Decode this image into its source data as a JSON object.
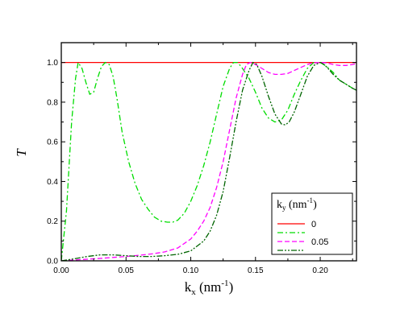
{
  "chart_data": {
    "type": "line",
    "xlim": [
      0.0,
      0.228
    ],
    "ylim": [
      0.0,
      1.1
    ],
    "x_ticks": [
      "0.00",
      "0.05",
      "0.10",
      "0.15",
      "0.20"
    ],
    "y_ticks": [
      "0.0",
      "0.2",
      "0.4",
      "0.6",
      "0.8",
      "1.0"
    ],
    "ylabel": "T",
    "xlabel": {
      "base": "k",
      "sub": "x",
      "unit": " (nm",
      "sup": "-1",
      "close": ")"
    },
    "legend": {
      "title": {
        "base": "k",
        "sub": "y",
        "unit": " (nm",
        "sup": "-1",
        "close": ")"
      },
      "entries": [
        "0",
        "",
        "0.05",
        ""
      ],
      "placement": "bottom-right"
    },
    "grid": false,
    "series": [
      {
        "name": "0",
        "color": "#ff0000",
        "dash": "solid",
        "x": [
          0.0,
          0.228
        ],
        "y": [
          1.0,
          1.0
        ]
      },
      {
        "name": "",
        "color": "#00dd00",
        "dash": "dashdot",
        "x": [
          0.0,
          0.004,
          0.008,
          0.011,
          0.013,
          0.016,
          0.019,
          0.022,
          0.025,
          0.028,
          0.031,
          0.034,
          0.037,
          0.04,
          0.043,
          0.047,
          0.052,
          0.057,
          0.062,
          0.067,
          0.072,
          0.077,
          0.082,
          0.086,
          0.09,
          0.095,
          0.1,
          0.105,
          0.11,
          0.115,
          0.12,
          0.125,
          0.13,
          0.133,
          0.136,
          0.139,
          0.142,
          0.145,
          0.15,
          0.155,
          0.16,
          0.165,
          0.17,
          0.175,
          0.18,
          0.185,
          0.19,
          0.195,
          0.2,
          0.205,
          0.21,
          0.215,
          0.22,
          0.225,
          0.228
        ],
        "y": [
          0.0,
          0.25,
          0.7,
          0.92,
          1.0,
          0.97,
          0.9,
          0.84,
          0.85,
          0.92,
          0.98,
          1.0,
          0.99,
          0.93,
          0.82,
          0.65,
          0.5,
          0.39,
          0.31,
          0.26,
          0.22,
          0.2,
          0.195,
          0.195,
          0.205,
          0.24,
          0.3,
          0.38,
          0.48,
          0.6,
          0.74,
          0.88,
          0.97,
          1.0,
          1.0,
          0.98,
          0.95,
          0.92,
          0.85,
          0.77,
          0.72,
          0.7,
          0.71,
          0.76,
          0.84,
          0.91,
          0.97,
          1.0,
          1.0,
          0.98,
          0.95,
          0.91,
          0.89,
          0.87,
          0.86
        ]
      },
      {
        "name": "0.05",
        "color": "#ff00ff",
        "dash": "dashed",
        "x": [
          0.0,
          0.01,
          0.02,
          0.03,
          0.04,
          0.05,
          0.06,
          0.07,
          0.08,
          0.09,
          0.1,
          0.105,
          0.11,
          0.115,
          0.12,
          0.125,
          0.13,
          0.135,
          0.14,
          0.143,
          0.146,
          0.15,
          0.155,
          0.16,
          0.165,
          0.17,
          0.175,
          0.18,
          0.185,
          0.19,
          0.195,
          0.2,
          0.205,
          0.21,
          0.215,
          0.22,
          0.225,
          0.228
        ],
        "y": [
          0.0,
          0.004,
          0.008,
          0.012,
          0.017,
          0.022,
          0.028,
          0.035,
          0.045,
          0.065,
          0.11,
          0.15,
          0.2,
          0.27,
          0.37,
          0.5,
          0.66,
          0.82,
          0.94,
          0.99,
          1.0,
          0.99,
          0.97,
          0.95,
          0.94,
          0.94,
          0.945,
          0.96,
          0.975,
          0.99,
          0.998,
          1.0,
          0.998,
          0.99,
          0.985,
          0.985,
          0.99,
          0.995
        ]
      },
      {
        "name": "",
        "color": "#006400",
        "dash": "dashdotdot",
        "x": [
          0.0,
          0.01,
          0.02,
          0.03,
          0.04,
          0.05,
          0.06,
          0.07,
          0.08,
          0.09,
          0.1,
          0.11,
          0.115,
          0.12,
          0.125,
          0.13,
          0.135,
          0.14,
          0.145,
          0.148,
          0.151,
          0.155,
          0.16,
          0.165,
          0.17,
          0.173,
          0.176,
          0.18,
          0.185,
          0.19,
          0.195,
          0.2,
          0.203,
          0.206,
          0.21,
          0.215,
          0.22,
          0.225,
          0.228
        ],
        "y": [
          0.0,
          0.01,
          0.022,
          0.03,
          0.03,
          0.026,
          0.022,
          0.022,
          0.026,
          0.033,
          0.05,
          0.1,
          0.15,
          0.23,
          0.35,
          0.52,
          0.7,
          0.86,
          0.96,
          1.0,
          0.99,
          0.93,
          0.83,
          0.74,
          0.69,
          0.685,
          0.7,
          0.75,
          0.84,
          0.93,
          0.985,
          1.0,
          0.99,
          0.97,
          0.94,
          0.91,
          0.89,
          0.87,
          0.86
        ]
      }
    ]
  }
}
